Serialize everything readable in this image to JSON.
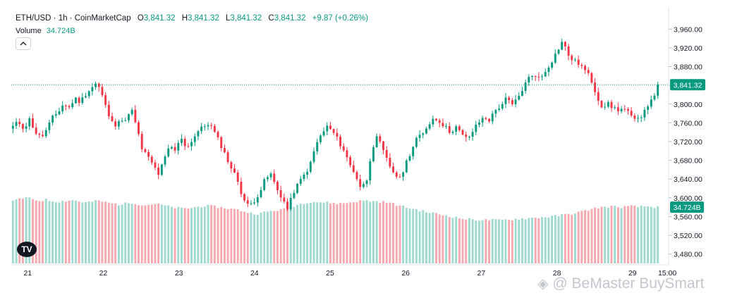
{
  "legend": {
    "symbol": "ETH/USD · 1h · CoinMarketCap",
    "open_label": "O",
    "open": "3,841.32",
    "high_label": "H",
    "high": "3,841.32",
    "low_label": "L",
    "low": "3,841.32",
    "close_label": "C",
    "close": "3,841.32",
    "change": "+9.87 (+0.26%)"
  },
  "volume": {
    "label": "Volume",
    "value": "34.724B"
  },
  "tv_logo": "TV",
  "watermark": "@ BeMaster BuySmart",
  "colors": {
    "up": "#089981",
    "down": "#f23645",
    "vol_up": "#9fd9cf",
    "vol_down": "#f7a9b0"
  },
  "chart_data": {
    "type": "candlestick",
    "title": "ETH/USD · 1h · CoinMarketCap",
    "ylim": [
      3460,
      3980
    ],
    "y_ticks": [
      "3,960.00",
      "3,920.00",
      "3,880.00",
      "3,840.00",
      "3,800.00",
      "3,760.00",
      "3,720.00",
      "3,680.00",
      "3,640.00",
      "3,600.00",
      "3,560.00",
      "3,520.00",
      "3,480.00"
    ],
    "x_ticks": [
      {
        "label": "21",
        "pos": 0.025
      },
      {
        "label": "22",
        "pos": 0.14
      },
      {
        "label": "23",
        "pos": 0.255
      },
      {
        "label": "24",
        "pos": 0.37
      },
      {
        "label": "25",
        "pos": 0.485
      },
      {
        "label": "26",
        "pos": 0.6
      },
      {
        "label": "27",
        "pos": 0.715
      },
      {
        "label": "28",
        "pos": 0.83
      },
      {
        "label": "29",
        "pos": 0.945
      },
      {
        "label": "15:00",
        "pos": 0.998
      }
    ],
    "current_price": 3841.32,
    "current_price_label": "3,841.32",
    "volume_label": "34.724B",
    "close_path": [
      3752,
      3762,
      3748,
      3768,
      3740,
      3728,
      3745,
      3770,
      3782,
      3800,
      3792,
      3812,
      3805,
      3822,
      3835,
      3846,
      3815,
      3778,
      3752,
      3770,
      3760,
      3795,
      3752,
      3705,
      3688,
      3670,
      3650,
      3682,
      3710,
      3700,
      3730,
      3705,
      3725,
      3742,
      3752,
      3760,
      3738,
      3715,
      3688,
      3662,
      3640,
      3600,
      3582,
      3594,
      3612,
      3640,
      3650,
      3620,
      3600,
      3575,
      3612,
      3632,
      3650,
      3670,
      3712,
      3735,
      3752,
      3742,
      3722,
      3702,
      3672,
      3652,
      3622,
      3632,
      3705,
      3730,
      3700,
      3672,
      3652,
      3640,
      3672,
      3700,
      3728,
      3732,
      3756,
      3770,
      3765,
      3752,
      3740,
      3752,
      3735,
      3725,
      3742,
      3760,
      3772,
      3766,
      3786,
      3797,
      3812,
      3797,
      3812,
      3835,
      3856,
      3865,
      3852,
      3872,
      3890,
      3912,
      3935,
      3905,
      3892,
      3886,
      3872,
      3856,
      3822,
      3795,
      3801,
      3792,
      3788,
      3790,
      3778,
      3762,
      3775,
      3797,
      3807,
      3841.32
    ],
    "volume_path": [
      3592,
      3598,
      3600,
      3597,
      3594,
      3596,
      3593,
      3592,
      3594,
      3595,
      3592,
      3590,
      3592,
      3594,
      3590,
      3588,
      3586,
      3588,
      3590,
      3586,
      3584,
      3587,
      3586,
      3583,
      3580,
      3578,
      3577,
      3579,
      3581,
      3583,
      3582,
      3580,
      3578,
      3576,
      3574,
      3570,
      3567,
      3566,
      3570,
      3572,
      3574,
      3576,
      3582,
      3586,
      3590,
      3592,
      3591,
      3590,
      3589,
      3588,
      3589,
      3591,
      3593,
      3594,
      3593,
      3592,
      3591,
      3588,
      3584,
      3580,
      3577,
      3574,
      3570,
      3568,
      3565,
      3563,
      3560,
      3557,
      3555,
      3554,
      3553,
      3553,
      3553,
      3552,
      3553,
      3554,
      3555,
      3556,
      3557,
      3558,
      3559,
      3560,
      3562,
      3564,
      3566,
      3569,
      3572,
      3576,
      3579,
      3580,
      3582,
      3580,
      3581,
      3582,
      3581,
      3582,
      3581,
      3580
    ],
    "volume_ylim": [
      3460,
      3980
    ]
  }
}
